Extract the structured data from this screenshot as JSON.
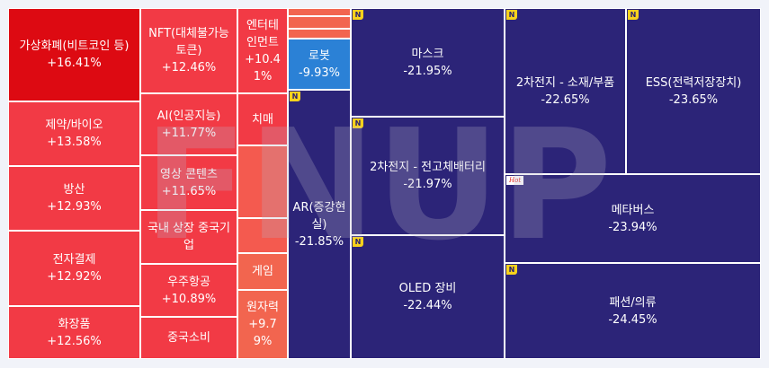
{
  "chart_data": {
    "type": "treemap",
    "tiles": [
      {
        "name": "가상화폐(비트코인 등)",
        "value": "+16.41%",
        "color": "#dd0a12",
        "badge": ""
      },
      {
        "name": "제약/바이오",
        "value": "+13.58%",
        "color": "#f23a45",
        "badge": ""
      },
      {
        "name": "방산",
        "value": "+12.93%",
        "color": "#f23a45",
        "badge": ""
      },
      {
        "name": "전자결제",
        "value": "+12.92%",
        "color": "#f23a45",
        "badge": ""
      },
      {
        "name": "화장품",
        "value": "+12.56%",
        "color": "#f23a45",
        "badge": ""
      },
      {
        "name": "NFT(대체불가능토큰)",
        "value": "+12.46%",
        "color": "#f23a45",
        "badge": ""
      },
      {
        "name": "AI(인공지능)",
        "value": "+11.77%",
        "color": "#f23a45",
        "badge": ""
      },
      {
        "name": "영상 콘텐츠",
        "value": "+11.65%",
        "color": "#f23a45",
        "badge": ""
      },
      {
        "name": "국내 상장 중국기업",
        "value": "",
        "color": "#f23a45",
        "badge": ""
      },
      {
        "name": "우주항공",
        "value": "+10.89%",
        "color": "#f23a45",
        "badge": ""
      },
      {
        "name": "중국소비",
        "value": "",
        "color": "#f23a45",
        "badge": ""
      },
      {
        "name": "엔터테인먼트",
        "value": "+10.41%",
        "color": "#f23a45",
        "badge": ""
      },
      {
        "name": "치매",
        "value": "",
        "color": "#f23a45",
        "badge": ""
      },
      {
        "name": "",
        "value": "",
        "color": "#f45a4f",
        "badge": ""
      },
      {
        "name": "",
        "value": "",
        "color": "#f45a4f",
        "badge": ""
      },
      {
        "name": "게임",
        "value": "",
        "color": "#f2654f",
        "badge": ""
      },
      {
        "name": "원자력",
        "value": "+9.79%",
        "color": "#f2654f",
        "badge": ""
      },
      {
        "name": "",
        "value": "",
        "color": "#f2654f",
        "badge": ""
      },
      {
        "name": "",
        "value": "",
        "color": "#f2654f",
        "badge": ""
      },
      {
        "name": "",
        "value": "",
        "color": "#f2654f",
        "badge": ""
      },
      {
        "name": "로봇",
        "value": "-9.93%",
        "color": "#2b81d6",
        "badge": ""
      },
      {
        "name": "AR(증강현실)",
        "value": "-21.85%",
        "color": "#2c2478",
        "badge": "N"
      },
      {
        "name": "마스크",
        "value": "-21.95%",
        "color": "#2c2478",
        "badge": "N"
      },
      {
        "name": "2차전지 - 전고체배터리",
        "value": "-21.97%",
        "color": "#2c2478",
        "badge": "N"
      },
      {
        "name": "OLED 장비",
        "value": "-22.44%",
        "color": "#2c2478",
        "badge": "N"
      },
      {
        "name": "2차전지 - 소재/부품",
        "value": "-22.65%",
        "color": "#2c2478",
        "badge": "N"
      },
      {
        "name": "ESS(전력저장장치)",
        "value": "-23.65%",
        "color": "#2c2478",
        "badge": "N"
      },
      {
        "name": "메타버스",
        "value": "-23.94%",
        "color": "#2c2478",
        "badge": "Hot"
      },
      {
        "name": "패션/의류",
        "value": "-24.45%",
        "color": "#2c2478",
        "badge": "N"
      }
    ]
  },
  "watermark": "FNUP"
}
